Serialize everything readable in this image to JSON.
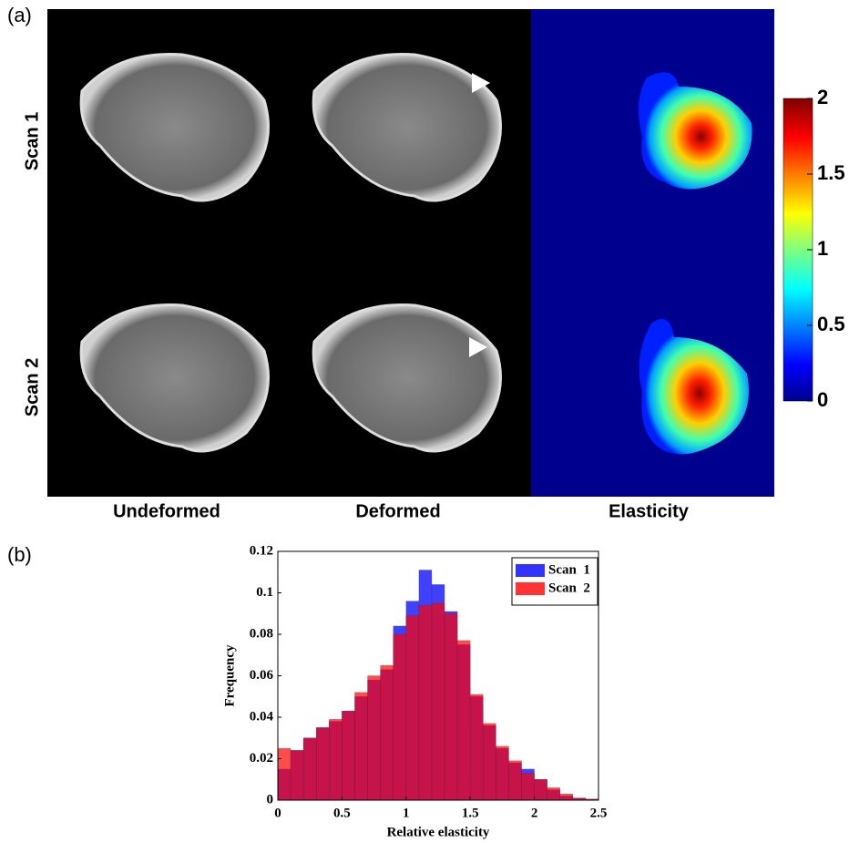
{
  "panel_a": {
    "label": "(a)",
    "rows": [
      "Scan 1",
      "Scan 2"
    ],
    "columns": [
      "Undeformed",
      "Deformed",
      "Elasticity"
    ],
    "colorbar": {
      "lim": [
        0,
        2
      ],
      "ticks": [
        0,
        0.5,
        1,
        1.5,
        2
      ]
    }
  },
  "chart_data": {
    "type": "histogram",
    "panel_label": "(b)",
    "x_label": "Relative elasticity",
    "y_label": "Frequency",
    "bins": [
      0,
      0.1,
      0.2,
      0.3,
      0.4,
      0.5,
      0.6,
      0.7,
      0.8,
      0.9,
      1,
      1.1,
      1.2,
      1.3,
      1.4,
      1.5,
      1.6,
      1.7,
      1.8,
      1.9,
      2,
      2.1,
      2.2,
      2.3,
      2.4,
      2.5
    ],
    "series": [
      {
        "name": "Scan  1",
        "color": "#0000ff",
        "values": [
          0.015,
          0.024,
          0.03,
          0.035,
          0.038,
          0.043,
          0.05,
          0.058,
          0.063,
          0.084,
          0.096,
          0.111,
          0.104,
          0.091,
          0.075,
          0.05,
          0.036,
          0.025,
          0.018,
          0.015,
          0.01,
          0.005,
          0.002,
          0.001,
          0.0005
        ]
      },
      {
        "name": "Scan  2",
        "color": "#ff0000",
        "values": [
          0.025,
          0.024,
          0.03,
          0.035,
          0.039,
          0.043,
          0.052,
          0.06,
          0.065,
          0.08,
          0.089,
          0.094,
          0.095,
          0.09,
          0.077,
          0.051,
          0.037,
          0.026,
          0.019,
          0.013,
          0.01,
          0.006,
          0.003,
          0.001,
          0.0005
        ]
      }
    ],
    "xlim": [
      0,
      2.5
    ],
    "xticks": [
      0,
      0.5,
      1,
      1.5,
      2,
      2.5
    ],
    "ylim": [
      0,
      0.12
    ],
    "yticks": [
      0,
      0.02,
      0.04,
      0.06,
      0.08,
      0.1,
      0.12
    ],
    "legend": "upper right"
  }
}
